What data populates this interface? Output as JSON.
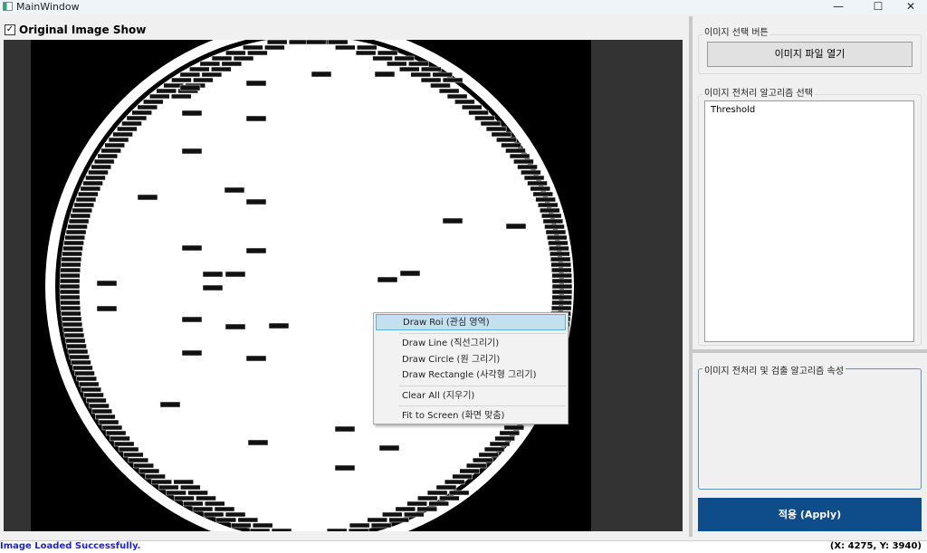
{
  "window": {
    "title": "MainWindow",
    "minimize": "—",
    "maximize": "☐",
    "close": "✕"
  },
  "toolbar": {
    "original_show_label": "Original Image Show",
    "original_show_checked": true,
    "check_glyph": "✓"
  },
  "context_menu": {
    "items": [
      {
        "label": "Draw Roi (관심 영역)",
        "highlighted": true
      },
      {
        "label": "Draw Line (직선그리기)"
      },
      {
        "label": "Draw Circle (원 그리기)"
      },
      {
        "label": "Draw Rectangle (사각형 그리기)"
      },
      {
        "label": "Clear All (지우기)"
      },
      {
        "label": "Fit to Screen (화면 맞춤)"
      }
    ]
  },
  "right_panel": {
    "image_select_group": "이미지 선택 버튼",
    "open_file_button": "이미지 파일 열기",
    "algorithm_group": "이미지 전처리 알고리즘 선택",
    "algorithms": [
      "Threshold"
    ],
    "properties_group": "이미지 전처리 및 검출 알고리즘 속성",
    "apply_button": "적용 (Apply)"
  },
  "status": {
    "message": "Image Loaded Successfully.",
    "coords": "(X: 4275, Y: 3940)"
  },
  "colors": {
    "apply": "#0f4c8a",
    "status_text": "#1f1fe0",
    "menu_highlight": "#c4e0ef"
  }
}
